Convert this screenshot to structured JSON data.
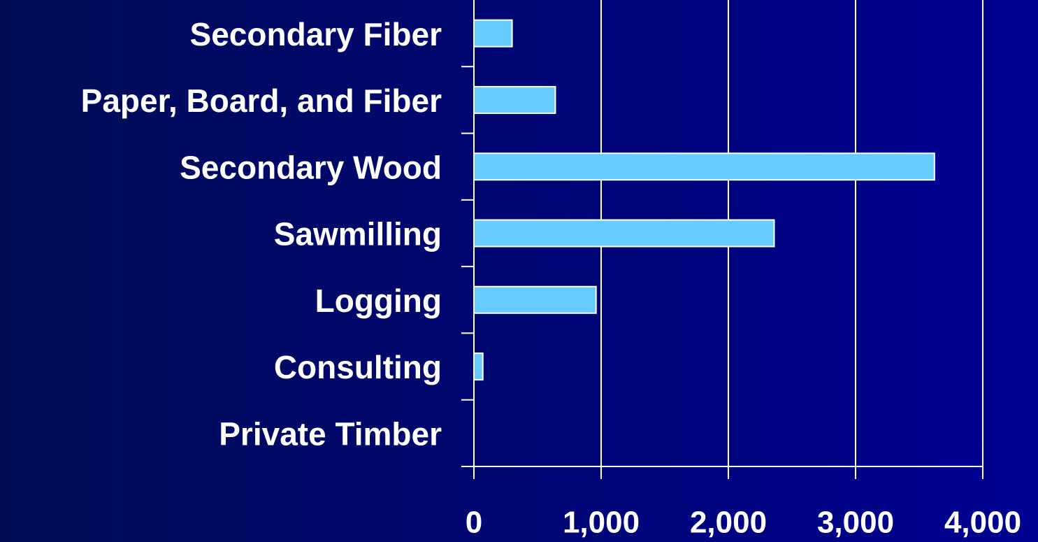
{
  "chart_data": {
    "type": "barh",
    "categories": [
      "Secondary Fiber",
      "Paper, Board, and Fiber",
      "Secondary Wood",
      "Sawmilling",
      "Logging",
      "Consulting",
      "Private Timber"
    ],
    "values": [
      300,
      640,
      3620,
      2360,
      960,
      70,
      0
    ],
    "color": "#66ccff",
    "xlim": [
      0,
      4000
    ],
    "xticks": [
      0,
      {
        "value": 1000,
        "label": "1,000"
      },
      {
        "value": 2000,
        "label": "2,000"
      },
      {
        "value": 3000,
        "label": "3,000"
      },
      {
        "value": 4000,
        "label": "4,000"
      }
    ],
    "grid": true
  }
}
